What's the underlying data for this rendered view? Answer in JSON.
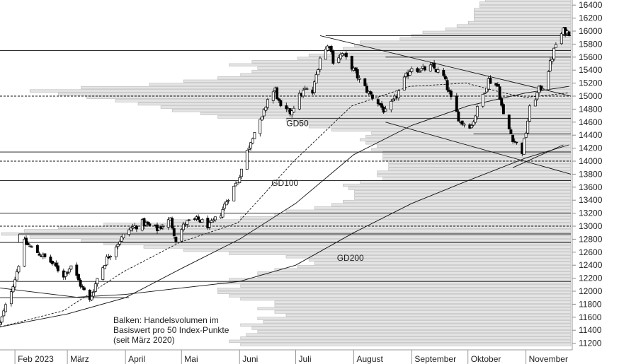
{
  "chart_data": {
    "type": "candlestick",
    "title": "",
    "xlabel": "",
    "ylabel": "",
    "ylim": [
      11100,
      16500
    ],
    "yticks": [
      11200,
      11400,
      11600,
      11800,
      12000,
      12200,
      12400,
      12600,
      12800,
      13000,
      13200,
      13400,
      13600,
      13800,
      14000,
      14200,
      14400,
      14600,
      14800,
      15000,
      15200,
      15400,
      15600,
      15800,
      16000,
      16200,
      16400
    ],
    "x_range": [
      "2023-01-24",
      "2023-11-25"
    ],
    "month_ticks": [
      {
        "date": "2023-02-01",
        "label": "Feb 2023"
      },
      {
        "date": "2023-03-01",
        "label": "März"
      },
      {
        "date": "2023-04-01",
        "label": "April"
      },
      {
        "date": "2023-05-01",
        "label": "Mai"
      },
      {
        "date": "2023-06-01",
        "label": "Juni"
      },
      {
        "date": "2023-07-01",
        "label": "Juli"
      },
      {
        "date": "2023-08-01",
        "label": "August"
      },
      {
        "date": "2023-09-01",
        "label": "September"
      },
      {
        "date": "2023-10-01",
        "label": "Oktober"
      },
      {
        "date": "2023-11-01",
        "label": "November"
      }
    ],
    "price_path": [
      [
        "2023-01-24",
        11500
      ],
      [
        "2023-02-01",
        12200
      ],
      [
        "2023-02-06",
        12750
      ],
      [
        "2023-02-13",
        12600
      ],
      [
        "2023-02-20",
        12450
      ],
      [
        "2023-02-27",
        12250
      ],
      [
        "2023-03-03",
        12400
      ],
      [
        "2023-03-08",
        12100
      ],
      [
        "2023-03-13",
        11850
      ],
      [
        "2023-03-17",
        12200
      ],
      [
        "2023-03-22",
        12500
      ],
      [
        "2023-03-28",
        12750
      ],
      [
        "2023-04-03",
        12950
      ],
      [
        "2023-04-10",
        13050
      ],
      [
        "2023-04-18",
        12950
      ],
      [
        "2023-04-25",
        13100
      ],
      [
        "2023-04-28",
        12800
      ],
      [
        "2023-05-03",
        13050
      ],
      [
        "2023-05-10",
        13100
      ],
      [
        "2023-05-16",
        13000
      ],
      [
        "2023-05-22",
        13200
      ],
      [
        "2023-05-26",
        13450
      ],
      [
        "2023-05-31",
        13700
      ],
      [
        "2023-06-05",
        14150
      ],
      [
        "2023-06-08",
        14400
      ],
      [
        "2023-06-13",
        14650
      ],
      [
        "2023-06-16",
        14950
      ],
      [
        "2023-06-20",
        15100
      ],
      [
        "2023-06-23",
        14800
      ],
      [
        "2023-06-28",
        14750
      ],
      [
        "2023-07-03",
        15000
      ],
      [
        "2023-07-06",
        15100
      ],
      [
        "2023-07-10",
        15050
      ],
      [
        "2023-07-14",
        15600
      ],
      [
        "2023-07-19",
        15800
      ],
      [
        "2023-07-21",
        15550
      ],
      [
        "2023-07-26",
        15650
      ],
      [
        "2023-07-31",
        15450
      ],
      [
        "2023-08-04",
        15250
      ],
      [
        "2023-08-09",
        15050
      ],
      [
        "2023-08-14",
        14900
      ],
      [
        "2023-08-18",
        14750
      ],
      [
        "2023-08-23",
        14950
      ],
      [
        "2023-08-28",
        15250
      ],
      [
        "2023-09-01",
        15450
      ],
      [
        "2023-09-06",
        15400
      ],
      [
        "2023-09-12",
        15450
      ],
      [
        "2023-09-18",
        15300
      ],
      [
        "2023-09-22",
        14950
      ],
      [
        "2023-09-27",
        14600
      ],
      [
        "2023-10-03",
        14550
      ],
      [
        "2023-10-06",
        14800
      ],
      [
        "2023-10-12",
        15250
      ],
      [
        "2023-10-17",
        15150
      ],
      [
        "2023-10-20",
        14700
      ],
      [
        "2023-10-25",
        14350
      ],
      [
        "2023-10-30",
        14150
      ],
      [
        "2023-11-01",
        14450
      ],
      [
        "2023-11-03",
        14800
      ],
      [
        "2023-11-08",
        15100
      ],
      [
        "2023-11-10",
        15150
      ],
      [
        "2023-11-14",
        15500
      ],
      [
        "2023-11-17",
        15800
      ],
      [
        "2023-11-21",
        16000
      ],
      [
        "2023-11-24",
        15980
      ]
    ],
    "moving_averages": [
      {
        "name": "GD50",
        "style": "dashed",
        "points": [
          [
            "2023-01-24",
            11450
          ],
          [
            "2023-02-27",
            11700
          ],
          [
            "2023-03-31",
            12300
          ],
          [
            "2023-04-30",
            12750
          ],
          [
            "2023-05-31",
            13050
          ],
          [
            "2023-06-30",
            14000
          ],
          [
            "2023-07-31",
            14850
          ],
          [
            "2023-08-31",
            15150
          ],
          [
            "2023-09-30",
            15200
          ],
          [
            "2023-10-20",
            15050
          ],
          [
            "2023-11-01",
            14980
          ],
          [
            "2023-11-24",
            15050
          ]
        ]
      },
      {
        "name": "GD100",
        "style": "solid",
        "points": [
          [
            "2023-01-24",
            11450
          ],
          [
            "2023-03-01",
            11650
          ],
          [
            "2023-04-01",
            11900
          ],
          [
            "2023-05-01",
            12350
          ],
          [
            "2023-06-01",
            12800
          ],
          [
            "2023-07-01",
            13350
          ],
          [
            "2023-08-01",
            14100
          ],
          [
            "2023-09-01",
            14550
          ],
          [
            "2023-10-01",
            14850
          ],
          [
            "2023-11-01",
            15050
          ],
          [
            "2023-11-24",
            15150
          ]
        ]
      },
      {
        "name": "GD200",
        "style": "solid",
        "points": [
          [
            "2023-01-24",
            11900
          ],
          [
            "2023-03-01",
            11900
          ],
          [
            "2023-04-01",
            11950
          ],
          [
            "2023-05-01",
            12050
          ],
          [
            "2023-06-01",
            12150
          ],
          [
            "2023-07-01",
            12400
          ],
          [
            "2023-08-01",
            12900
          ],
          [
            "2023-09-01",
            13350
          ],
          [
            "2023-10-01",
            13700
          ],
          [
            "2023-11-01",
            14050
          ],
          [
            "2023-11-24",
            14250
          ]
        ]
      }
    ],
    "horizontal_lines": [
      {
        "y": 15700,
        "style": "solid",
        "from": "2023-01-24",
        "to": "2023-11-25"
      },
      {
        "y": 15000,
        "style": "dashed",
        "from": "2023-01-24",
        "to": "2023-11-25"
      },
      {
        "y": 14140,
        "style": "solid",
        "from": "2023-01-24",
        "to": "2023-11-25"
      },
      {
        "y": 14000,
        "style": "dashed",
        "from": "2023-01-24",
        "to": "2023-11-25"
      },
      {
        "y": 13700,
        "style": "solid",
        "from": "2023-01-24",
        "to": "2023-11-25"
      },
      {
        "y": 13200,
        "style": "solid",
        "from": "2023-01-24",
        "to": "2023-11-25"
      },
      {
        "y": 13000,
        "style": "dashed",
        "from": "2023-01-24",
        "to": "2023-11-25"
      },
      {
        "y": 12880,
        "style": "solid",
        "from": "2023-02-03",
        "to": "2023-11-25"
      },
      {
        "y": 12750,
        "style": "solid",
        "from": "2023-01-24",
        "to": "2023-11-25"
      },
      {
        "y": 12150,
        "style": "solid",
        "from": "2023-01-24",
        "to": "2023-11-25"
      },
      {
        "y": 15930,
        "style": "solid",
        "from": "2023-07-17",
        "to": "2023-11-25"
      },
      {
        "y": 15600,
        "style": "solid",
        "from": "2023-08-18",
        "to": "2023-11-25"
      },
      {
        "y": 14660,
        "style": "solid",
        "from": "2023-06-26",
        "to": "2023-11-25"
      },
      {
        "y": 14420,
        "style": "solid",
        "from": "2023-10-04",
        "to": "2023-11-25"
      }
    ],
    "trend_lines": [
      {
        "from": [
          "2023-07-14",
          15930
        ],
        "to": [
          "2023-11-25",
          15000
        ]
      },
      {
        "from": [
          "2023-08-18",
          14600
        ],
        "to": [
          "2023-11-25",
          13800
        ]
      },
      {
        "from": [
          "2023-10-25",
          13900
        ],
        "to": [
          "2023-11-21",
          14250
        ]
      },
      {
        "from": [
          "2023-01-24",
          12050
        ],
        "to": [
          "2023-03-08",
          11900
        ]
      },
      {
        "from": [
          "2023-03-08",
          11900
        ],
        "to": [
          "2023-04-03",
          11900
        ]
      },
      {
        "from": [
          "2023-02-03",
          12880
        ],
        "to": [
          "2023-02-03",
          12750
        ]
      }
    ],
    "volume_profile": {
      "bin_size": 50,
      "bins": [
        [
          11150,
          0.58
        ],
        [
          11200,
          0.6
        ],
        [
          11250,
          0.58
        ],
        [
          11300,
          0.57
        ],
        [
          11350,
          0.55
        ],
        [
          11400,
          0.56
        ],
        [
          11450,
          0.58
        ],
        [
          11500,
          0.54
        ],
        [
          11550,
          0.55
        ],
        [
          11600,
          0.5
        ],
        [
          11650,
          0.52
        ],
        [
          11700,
          0.55
        ],
        [
          11750,
          0.52
        ],
        [
          11800,
          0.52
        ],
        [
          11850,
          0.58
        ],
        [
          11900,
          0.6
        ],
        [
          11950,
          0.62
        ],
        [
          12000,
          0.62
        ],
        [
          12050,
          0.58
        ],
        [
          12100,
          0.62
        ],
        [
          12150,
          0.6
        ],
        [
          12200,
          0.55
        ],
        [
          12250,
          0.55
        ],
        [
          12300,
          0.52
        ],
        [
          12350,
          0.48
        ],
        [
          12400,
          0.45
        ],
        [
          12450,
          0.46
        ],
        [
          12500,
          0.5
        ],
        [
          12550,
          0.6
        ],
        [
          12600,
          0.68
        ],
        [
          12650,
          0.75
        ],
        [
          12700,
          0.82
        ],
        [
          12750,
          0.86
        ],
        [
          12800,
          0.95
        ],
        [
          12850,
          1.0
        ],
        [
          12900,
          0.96
        ],
        [
          12950,
          0.9
        ],
        [
          13000,
          0.82
        ],
        [
          13050,
          0.7
        ],
        [
          13100,
          0.58
        ],
        [
          13150,
          0.52
        ],
        [
          13200,
          0.5
        ],
        [
          13250,
          0.45
        ],
        [
          13300,
          0.42
        ],
        [
          13350,
          0.4
        ],
        [
          13400,
          0.38
        ],
        [
          13450,
          0.38
        ],
        [
          13500,
          0.38
        ],
        [
          13550,
          0.39
        ],
        [
          13600,
          0.4
        ],
        [
          13650,
          0.37
        ],
        [
          13700,
          0.33
        ],
        [
          13750,
          0.34
        ],
        [
          13800,
          0.34
        ],
        [
          13850,
          0.32
        ],
        [
          13900,
          0.32
        ],
        [
          13950,
          0.32
        ],
        [
          14000,
          0.33
        ],
        [
          14050,
          0.33
        ],
        [
          14100,
          0.33
        ],
        [
          14150,
          0.35
        ],
        [
          14200,
          0.34
        ],
        [
          14250,
          0.36
        ],
        [
          14300,
          0.37
        ],
        [
          14350,
          0.36
        ],
        [
          14400,
          0.35
        ],
        [
          14450,
          0.42
        ],
        [
          14500,
          0.46
        ],
        [
          14550,
          0.48
        ],
        [
          14600,
          0.5
        ],
        [
          14650,
          0.62
        ],
        [
          14700,
          0.65
        ],
        [
          14750,
          0.7
        ],
        [
          14800,
          0.72
        ],
        [
          14850,
          0.76
        ],
        [
          14900,
          0.8
        ],
        [
          14950,
          0.85
        ],
        [
          15000,
          0.9
        ],
        [
          15050,
          0.95
        ],
        [
          15100,
          0.86
        ],
        [
          15150,
          0.74
        ],
        [
          15200,
          0.68
        ],
        [
          15250,
          0.62
        ],
        [
          15300,
          0.58
        ],
        [
          15350,
          0.56
        ],
        [
          15400,
          0.55
        ],
        [
          15450,
          0.6
        ],
        [
          15500,
          0.56
        ],
        [
          15550,
          0.48
        ],
        [
          15600,
          0.46
        ],
        [
          15650,
          0.42
        ],
        [
          15700,
          0.4
        ],
        [
          15750,
          0.38
        ],
        [
          15800,
          0.37
        ],
        [
          15850,
          0.3
        ],
        [
          15900,
          0.28
        ],
        [
          15950,
          0.26
        ],
        [
          16000,
          0.22
        ],
        [
          16050,
          0.2
        ],
        [
          16100,
          0.18
        ],
        [
          16150,
          0.17
        ],
        [
          16200,
          0.17
        ],
        [
          16250,
          0.17
        ],
        [
          16300,
          0.17
        ],
        [
          16350,
          0.16
        ],
        [
          16400,
          0.16
        ],
        [
          16450,
          0.15
        ]
      ]
    },
    "annotations": [
      {
        "text": "GD50",
        "date": "2023-06-26",
        "y": 14540
      },
      {
        "text": "GD100",
        "date": "2023-06-18",
        "y": 13620
      },
      {
        "text": "GD200",
        "date": "2023-07-23",
        "y": 12470
      }
    ],
    "volume_note": [
      "Balken: Handelsvolumen im",
      "Basiswert pro 50 Index-Punkte",
      "(seit März 2020)"
    ],
    "grid": false
  }
}
